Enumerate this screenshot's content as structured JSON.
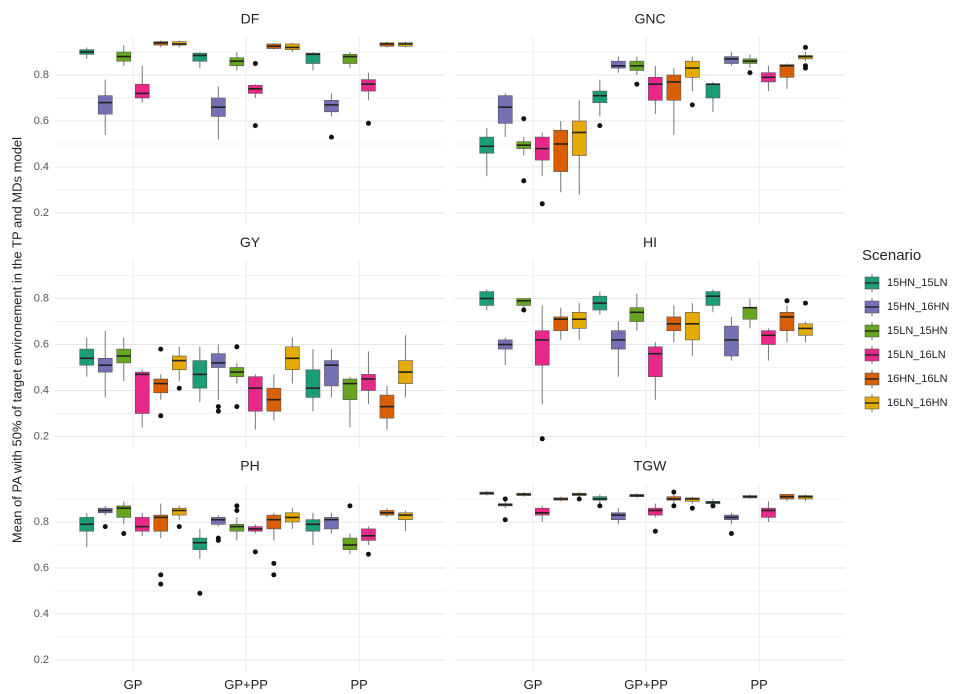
{
  "chart_data": {
    "type": "box",
    "y_label": "Mean of PA with 50% of target environement in the TP and MDs model",
    "legend_title": "Scenario",
    "categories": [
      "GP",
      "GP+PP",
      "PP"
    ],
    "series": [
      {
        "name": "15HN_15LN",
        "color": "#1b9e77"
      },
      {
        "name": "15HN_16HN",
        "color": "#7570b3"
      },
      {
        "name": "15LN_15HN",
        "color": "#66a61e"
      },
      {
        "name": "15LN_16LN",
        "color": "#e7298a"
      },
      {
        "name": "16HN_16LN",
        "color": "#d95f02"
      },
      {
        "name": "16LN_16HN",
        "color": "#e6ab02"
      }
    ],
    "ylim": [
      0.15,
      0.97
    ],
    "yticks": [
      {
        "value": 0.2,
        "label": "0.2"
      },
      {
        "value": 0.4,
        "label": "0.4"
      },
      {
        "value": 0.6,
        "label": "0.6"
      },
      {
        "value": 0.8,
        "label": "0.8"
      }
    ],
    "grid": true,
    "panels": [
      {
        "title": "DF",
        "boxes": [
          [
            [
              0.87,
              0.89,
              0.9,
              0.91,
              0.92
            ],
            [
              0.54,
              0.63,
              0.68,
              0.71,
              0.78
            ],
            [
              0.84,
              0.86,
              0.88,
              0.9,
              0.93
            ],
            [
              0.68,
              0.7,
              0.72,
              0.76,
              0.84
            ],
            [
              0.92,
              0.93,
              0.94,
              0.945,
              0.95
            ],
            [
              0.92,
              0.93,
              0.935,
              0.945,
              0.95
            ]
          ],
          [
            [
              0.83,
              0.86,
              0.885,
              0.895,
              0.9
            ],
            [
              0.52,
              0.62,
              0.66,
              0.7,
              0.75
            ],
            [
              0.82,
              0.84,
              0.86,
              0.875,
              0.9
            ],
            [
              0.7,
              0.72,
              0.74,
              0.755,
              0.76
            ],
            [
              0.91,
              0.915,
              0.925,
              0.935,
              0.94
            ],
            [
              0.9,
              0.91,
              0.92,
              0.935,
              0.94
            ]
          ],
          [
            [
              0.82,
              0.85,
              0.89,
              0.895,
              0.9
            ],
            [
              0.62,
              0.64,
              0.67,
              0.69,
              0.72
            ],
            [
              0.83,
              0.85,
              0.88,
              0.89,
              0.9
            ],
            [
              0.69,
              0.73,
              0.76,
              0.78,
              0.81
            ],
            [
              0.92,
              0.925,
              0.935,
              0.94,
              0.945
            ],
            [
              0.92,
              0.925,
              0.935,
              0.94,
              0.945
            ]
          ]
        ],
        "outliers": [
          [
            [],
            [],
            [],
            [],
            [],
            []
          ],
          [
            [],
            [],
            [],
            [
              0.85,
              0.58
            ],
            [],
            []
          ],
          [
            [],
            [
              0.53
            ],
            [],
            [
              0.59
            ],
            [],
            []
          ]
        ]
      },
      {
        "title": "GNC",
        "boxes": [
          [
            [
              0.36,
              0.46,
              0.49,
              0.53,
              0.57
            ],
            [
              0.53,
              0.59,
              0.66,
              0.71,
              0.72
            ],
            [
              0.45,
              0.48,
              0.495,
              0.51,
              0.53
            ],
            [
              0.36,
              0.43,
              0.48,
              0.53,
              0.55
            ],
            [
              0.29,
              0.38,
              0.5,
              0.56,
              0.6
            ],
            [
              0.28,
              0.45,
              0.55,
              0.6,
              0.69
            ]
          ],
          [
            [
              0.62,
              0.68,
              0.71,
              0.73,
              0.78
            ],
            [
              0.81,
              0.83,
              0.84,
              0.86,
              0.88
            ],
            [
              0.8,
              0.82,
              0.84,
              0.86,
              0.88
            ],
            [
              0.63,
              0.69,
              0.76,
              0.79,
              0.84
            ],
            [
              0.54,
              0.69,
              0.77,
              0.8,
              0.83
            ],
            [
              0.73,
              0.79,
              0.83,
              0.86,
              0.88
            ]
          ],
          [
            [
              0.64,
              0.7,
              0.76,
              0.76,
              0.77
            ],
            [
              0.84,
              0.85,
              0.87,
              0.88,
              0.9
            ],
            [
              0.83,
              0.85,
              0.86,
              0.87,
              0.89
            ],
            [
              0.73,
              0.77,
              0.79,
              0.81,
              0.84
            ],
            [
              0.74,
              0.79,
              0.84,
              0.845,
              0.85
            ],
            [
              0.86,
              0.87,
              0.88,
              0.885,
              0.9
            ]
          ]
        ],
        "outliers": [
          [
            [],
            [],
            [
              0.61,
              0.34
            ],
            [
              0.24
            ],
            [],
            []
          ],
          [
            [
              0.58
            ],
            [],
            [
              0.76
            ],
            [],
            [],
            [
              0.67
            ]
          ],
          [
            [],
            [],
            [
              0.81
            ],
            [],
            [],
            [
              0.92,
              0.84,
              0.83
            ]
          ]
        ]
      },
      {
        "title": "GY",
        "boxes": [
          [
            [
              0.46,
              0.51,
              0.54,
              0.58,
              0.63
            ],
            [
              0.37,
              0.48,
              0.51,
              0.54,
              0.66
            ],
            [
              0.44,
              0.52,
              0.55,
              0.58,
              0.63
            ],
            [
              0.24,
              0.3,
              0.47,
              0.48,
              0.49
            ],
            [
              0.36,
              0.39,
              0.43,
              0.45,
              0.47
            ],
            [
              0.44,
              0.49,
              0.53,
              0.55,
              0.59
            ]
          ],
          [
            [
              0.35,
              0.41,
              0.47,
              0.53,
              0.59
            ],
            [
              0.36,
              0.5,
              0.52,
              0.56,
              0.6
            ],
            [
              0.43,
              0.46,
              0.48,
              0.5,
              0.52
            ],
            [
              0.23,
              0.31,
              0.41,
              0.46,
              0.47
            ],
            [
              0.27,
              0.31,
              0.36,
              0.41,
              0.47
            ],
            [
              0.43,
              0.49,
              0.54,
              0.59,
              0.63
            ]
          ],
          [
            [
              0.31,
              0.37,
              0.41,
              0.49,
              0.58
            ],
            [
              0.37,
              0.42,
              0.51,
              0.53,
              0.58
            ],
            [
              0.24,
              0.36,
              0.43,
              0.45,
              0.46
            ],
            [
              0.34,
              0.4,
              0.45,
              0.47,
              0.57
            ],
            [
              0.23,
              0.28,
              0.33,
              0.38,
              0.42
            ],
            [
              0.37,
              0.43,
              0.48,
              0.53,
              0.64
            ]
          ]
        ],
        "outliers": [
          [
            [],
            [],
            [],
            [],
            [
              0.58,
              0.29
            ],
            [
              0.41
            ]
          ],
          [
            [],
            [
              0.33,
              0.31
            ],
            [
              0.59,
              0.33
            ],
            [],
            [],
            []
          ],
          [
            [],
            [],
            [],
            [],
            [],
            []
          ]
        ]
      },
      {
        "title": "HI",
        "boxes": [
          [
            [
              0.75,
              0.77,
              0.8,
              0.83,
              0.84
            ],
            [
              0.51,
              0.58,
              0.6,
              0.62,
              0.63
            ],
            [
              0.74,
              0.77,
              0.79,
              0.8,
              0.8
            ],
            [
              0.34,
              0.51,
              0.62,
              0.66,
              0.77
            ],
            [
              0.62,
              0.66,
              0.71,
              0.72,
              0.76
            ],
            [
              0.62,
              0.67,
              0.71,
              0.74,
              0.78
            ]
          ],
          [
            [
              0.73,
              0.75,
              0.78,
              0.81,
              0.83
            ],
            [
              0.46,
              0.58,
              0.62,
              0.66,
              0.7
            ],
            [
              0.66,
              0.7,
              0.74,
              0.76,
              0.82
            ],
            [
              0.36,
              0.46,
              0.56,
              0.59,
              0.61
            ],
            [
              0.61,
              0.66,
              0.69,
              0.72,
              0.77
            ],
            [
              0.55,
              0.62,
              0.69,
              0.74,
              0.78
            ]
          ],
          [
            [
              0.74,
              0.77,
              0.81,
              0.83,
              0.84
            ],
            [
              0.53,
              0.55,
              0.62,
              0.68,
              0.72
            ],
            [
              0.67,
              0.71,
              0.76,
              0.76,
              0.8
            ],
            [
              0.53,
              0.6,
              0.64,
              0.66,
              0.67
            ],
            [
              0.61,
              0.66,
              0.72,
              0.74,
              0.77
            ],
            [
              0.61,
              0.64,
              0.67,
              0.69,
              0.7
            ]
          ]
        ],
        "outliers": [
          [
            [],
            [],
            [
              0.75
            ],
            [
              0.19
            ],
            [],
            []
          ],
          [
            [],
            [],
            [],
            [],
            [],
            []
          ],
          [
            [],
            [],
            [],
            [],
            [
              0.79
            ],
            [
              0.78
            ]
          ]
        ]
      },
      {
        "title": "PH",
        "boxes": [
          [
            [
              0.69,
              0.76,
              0.79,
              0.82,
              0.84
            ],
            [
              0.83,
              0.84,
              0.85,
              0.86,
              0.87
            ],
            [
              0.79,
              0.82,
              0.86,
              0.87,
              0.89
            ],
            [
              0.74,
              0.76,
              0.78,
              0.82,
              0.84
            ],
            [
              0.73,
              0.76,
              0.82,
              0.83,
              0.88
            ],
            [
              0.81,
              0.83,
              0.85,
              0.86,
              0.87
            ]
          ],
          [
            [
              0.64,
              0.68,
              0.71,
              0.73,
              0.77
            ],
            [
              0.78,
              0.79,
              0.81,
              0.82,
              0.83
            ],
            [
              0.72,
              0.76,
              0.78,
              0.79,
              0.82
            ],
            [
              0.75,
              0.76,
              0.77,
              0.78,
              0.79
            ],
            [
              0.72,
              0.77,
              0.81,
              0.83,
              0.84
            ],
            [
              0.77,
              0.8,
              0.82,
              0.84,
              0.86
            ]
          ],
          [
            [
              0.7,
              0.76,
              0.79,
              0.81,
              0.84
            ],
            [
              0.75,
              0.77,
              0.81,
              0.82,
              0.84
            ],
            [
              0.66,
              0.68,
              0.7,
              0.73,
              0.75
            ],
            [
              0.7,
              0.72,
              0.74,
              0.77,
              0.78
            ],
            [
              0.82,
              0.83,
              0.84,
              0.85,
              0.86
            ],
            [
              0.76,
              0.81,
              0.83,
              0.84,
              0.85
            ]
          ]
        ],
        "outliers": [
          [
            [],
            [
              0.78
            ],
            [
              0.75
            ],
            [],
            [
              0.57,
              0.53
            ],
            [
              0.78
            ]
          ],
          [
            [
              0.49
            ],
            [
              0.73,
              0.72
            ],
            [
              0.87,
              0.85
            ],
            [
              0.67
            ],
            [
              0.62,
              0.57
            ],
            []
          ],
          [
            [],
            [],
            [
              0.87
            ],
            [
              0.66
            ],
            [],
            []
          ]
        ]
      },
      {
        "title": "TGW",
        "boxes": [
          [
            [
              0.915,
              0.92,
              0.925,
              0.93,
              0.935
            ],
            [
              0.86,
              0.87,
              0.875,
              0.88,
              0.89
            ],
            [
              0.91,
              0.915,
              0.92,
              0.925,
              0.93
            ],
            [
              0.8,
              0.83,
              0.84,
              0.86,
              0.87
            ],
            [
              0.89,
              0.895,
              0.9,
              0.905,
              0.91
            ],
            [
              0.91,
              0.915,
              0.92,
              0.925,
              0.93
            ]
          ],
          [
            [
              0.88,
              0.895,
              0.9,
              0.91,
              0.92
            ],
            [
              0.79,
              0.81,
              0.83,
              0.84,
              0.86
            ],
            [
              0.905,
              0.91,
              0.915,
              0.92,
              0.925
            ],
            [
              0.82,
              0.83,
              0.85,
              0.86,
              0.88
            ],
            [
              0.88,
              0.895,
              0.9,
              0.91,
              0.92
            ],
            [
              0.88,
              0.89,
              0.9,
              0.905,
              0.91
            ]
          ],
          [
            [
              0.87,
              0.88,
              0.885,
              0.89,
              0.9
            ],
            [
              0.79,
              0.81,
              0.82,
              0.83,
              0.84
            ],
            [
              0.9,
              0.905,
              0.91,
              0.915,
              0.92
            ],
            [
              0.8,
              0.82,
              0.85,
              0.86,
              0.89
            ],
            [
              0.89,
              0.9,
              0.91,
              0.92,
              0.92
            ],
            [
              0.89,
              0.9,
              0.91,
              0.915,
              0.92
            ]
          ]
        ],
        "outliers": [
          [
            [],
            [
              0.9,
              0.81
            ],
            [],
            [],
            [],
            [
              0.9
            ]
          ],
          [
            [
              0.87
            ],
            [],
            [],
            [
              0.76
            ],
            [
              0.93,
              0.87
            ],
            [
              0.86
            ]
          ],
          [
            [
              0.87
            ],
            [
              0.75
            ],
            [],
            [],
            [],
            []
          ]
        ]
      }
    ]
  }
}
